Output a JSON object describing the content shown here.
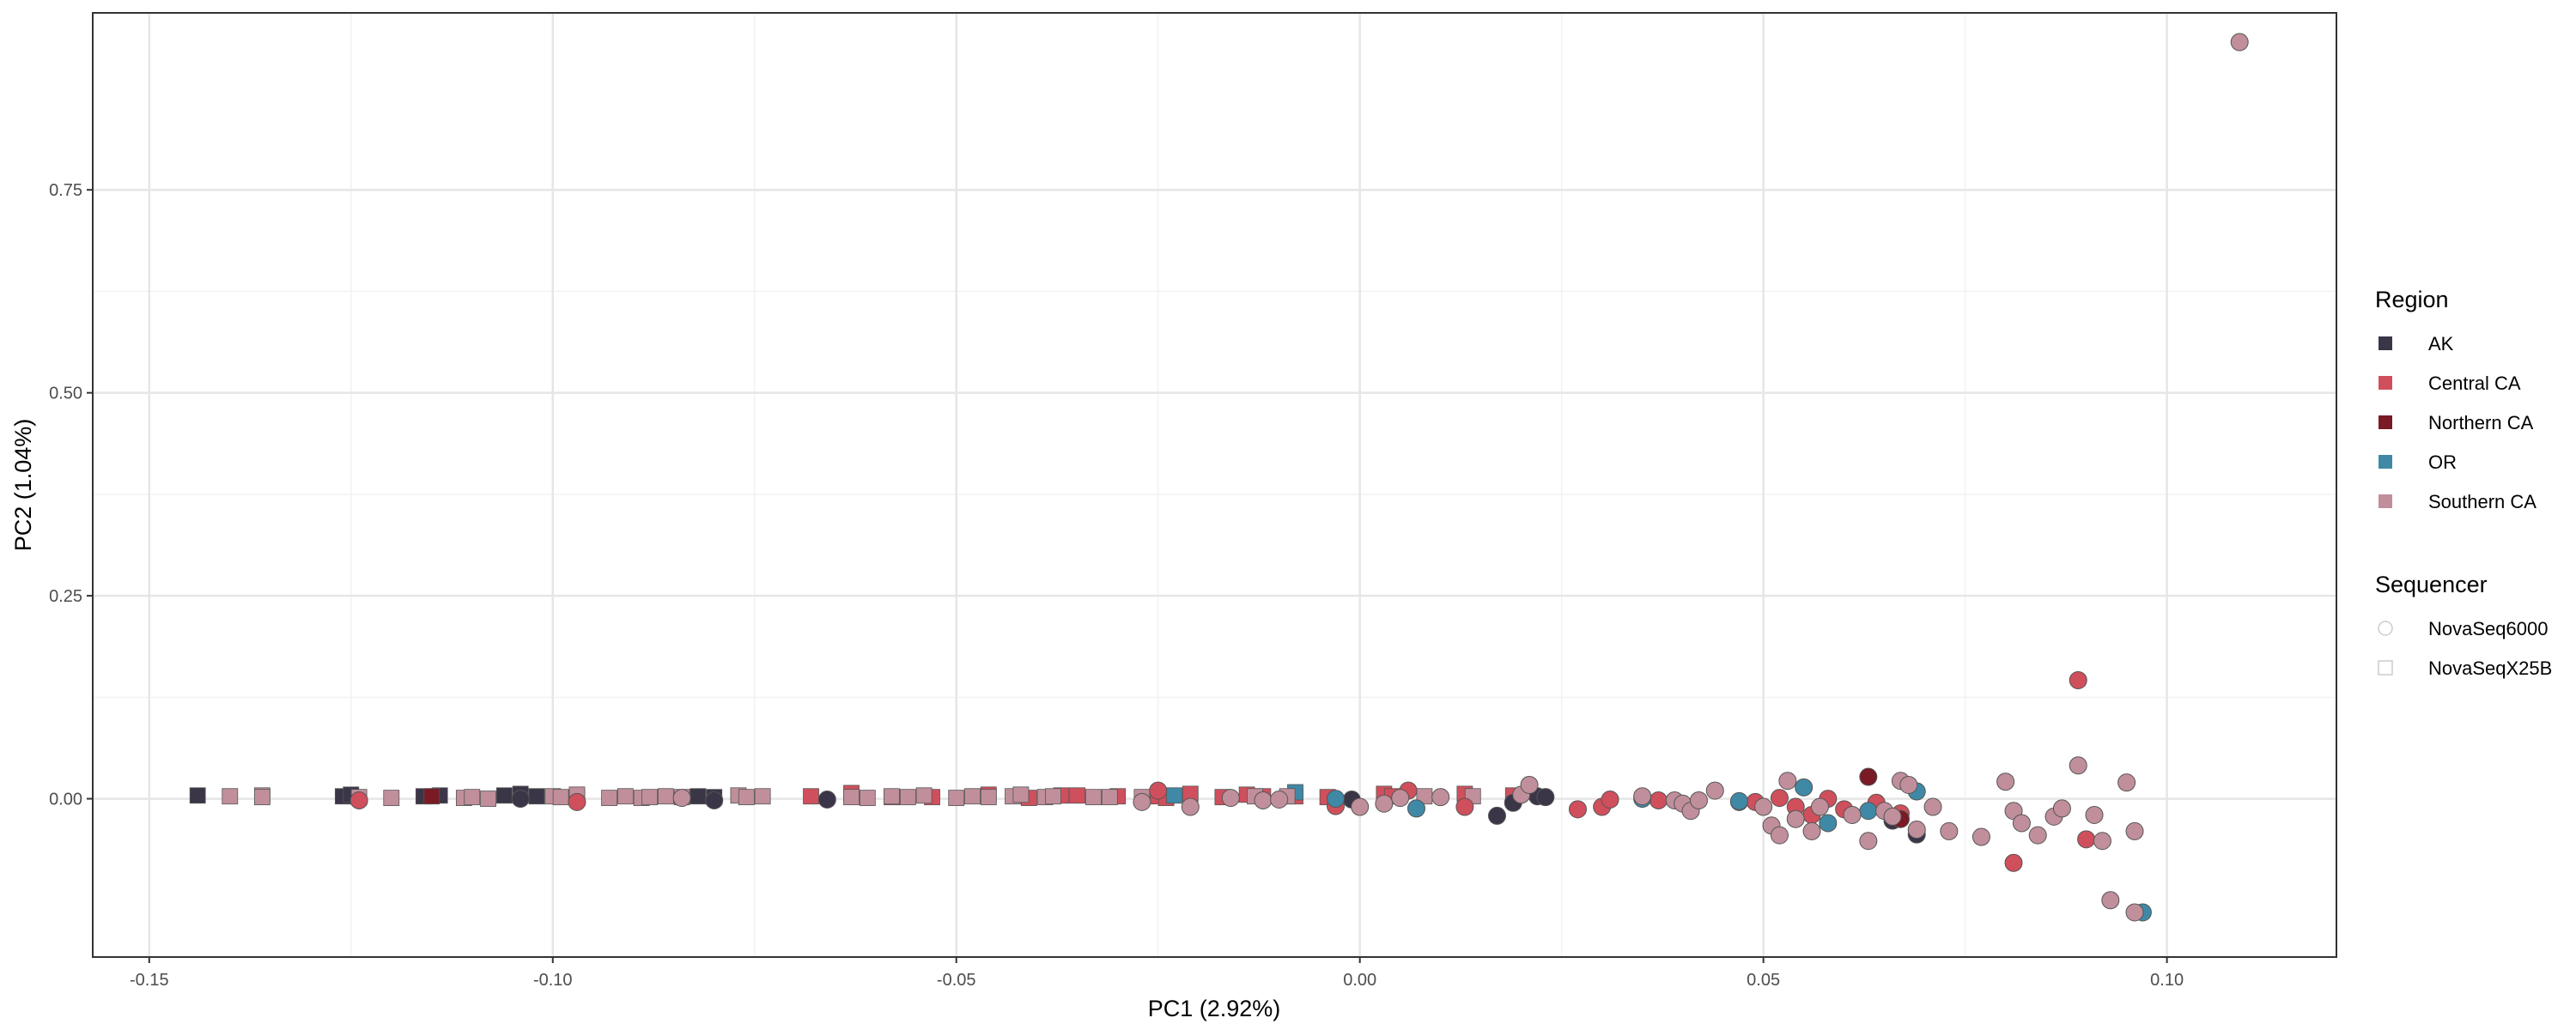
{
  "chart_data": {
    "type": "scatter",
    "title": "",
    "xlabel": "PC1 (2.92%)",
    "ylabel": "PC2 (1.04%)",
    "xlim": [
      -0.157,
      0.121
    ],
    "ylim": [
      -0.195,
      0.968
    ],
    "x_ticks": [
      -0.15,
      -0.1,
      -0.05,
      0.0,
      0.05,
      0.1
    ],
    "x_tick_labels": [
      "-0.15",
      "-0.10",
      "-0.05",
      "0.00",
      "0.05",
      "0.10"
    ],
    "y_ticks": [
      0.0,
      0.25,
      0.5,
      0.75
    ],
    "y_tick_labels": [
      "0.00",
      "0.25",
      "0.50",
      "0.75"
    ],
    "grid": true,
    "legend_position": "right",
    "colors": {
      "AK": "#3b3548",
      "Central CA": "#d04f5c",
      "Northern CA": "#7a1a24",
      "OR": "#3f89a6",
      "Southern CA": "#c08f9b"
    },
    "legends": [
      {
        "title": "Region",
        "key": "region",
        "items": [
          "AK",
          "Central CA",
          "Northern CA",
          "OR",
          "Southern CA"
        ]
      },
      {
        "title": "Sequencer",
        "key": "sequencer",
        "items": [
          "NovaSeq6000",
          "NovaSeqX25B"
        ]
      }
    ],
    "series": [
      {
        "region": "AK",
        "sequencer": "NovaSeqX25B",
        "points": [
          [
            -0.144,
            0.004
          ],
          [
            -0.126,
            0.003
          ],
          [
            -0.125,
            0.005
          ],
          [
            -0.116,
            0.003
          ],
          [
            -0.114,
            0.004
          ],
          [
            -0.106,
            0.004
          ],
          [
            -0.104,
            0.006
          ],
          [
            -0.102,
            0.003
          ],
          [
            -0.082,
            0.003
          ],
          [
            -0.08,
            0.002
          ]
        ]
      },
      {
        "region": "AK",
        "sequencer": "NovaSeq6000",
        "points": [
          [
            -0.104,
            0.0
          ],
          [
            -0.08,
            -0.002
          ],
          [
            -0.066,
            -0.001
          ],
          [
            -0.001,
            -0.001
          ],
          [
            0.017,
            -0.021
          ],
          [
            0.019,
            -0.005
          ],
          [
            0.022,
            0.003
          ],
          [
            0.023,
            0.002
          ],
          [
            0.047,
            -0.004
          ],
          [
            0.066,
            -0.027
          ],
          [
            0.069,
            -0.044
          ]
        ]
      },
      {
        "region": "Central CA",
        "sequencer": "NovaSeqX25B",
        "points": [
          [
            -0.068,
            0.003
          ],
          [
            -0.063,
            0.007
          ],
          [
            -0.058,
            0.002
          ],
          [
            -0.053,
            0.002
          ],
          [
            -0.046,
            0.005
          ],
          [
            -0.041,
            0.001
          ],
          [
            -0.037,
            0.004
          ],
          [
            -0.035,
            0.004
          ],
          [
            -0.03,
            0.003
          ],
          [
            -0.025,
            0.003
          ],
          [
            -0.024,
            0.001
          ],
          [
            -0.021,
            0.006
          ],
          [
            -0.017,
            0.002
          ],
          [
            -0.014,
            0.005
          ],
          [
            -0.012,
            0.003
          ],
          [
            -0.008,
            0.003
          ],
          [
            -0.004,
            0.002
          ],
          [
            0.003,
            0.006
          ],
          [
            0.004,
            0.003
          ],
          [
            0.013,
            0.006
          ],
          [
            0.019,
            0.004
          ]
        ]
      },
      {
        "region": "Central CA",
        "sequencer": "NovaSeq6000",
        "points": [
          [
            -0.124,
            -0.002
          ],
          [
            -0.097,
            -0.004
          ],
          [
            -0.025,
            0.01
          ],
          [
            -0.003,
            -0.009
          ],
          [
            0.006,
            0.01
          ],
          [
            0.013,
            -0.01
          ],
          [
            0.027,
            -0.013
          ],
          [
            0.03,
            -0.01
          ],
          [
            0.031,
            -0.001
          ],
          [
            0.037,
            -0.002
          ],
          [
            0.049,
            -0.004
          ],
          [
            0.052,
            0.001
          ],
          [
            0.054,
            -0.01
          ],
          [
            0.056,
            -0.02
          ],
          [
            0.058,
            0.0
          ],
          [
            0.06,
            -0.013
          ],
          [
            0.064,
            -0.005
          ],
          [
            0.067,
            -0.018
          ],
          [
            0.081,
            -0.079
          ],
          [
            0.089,
            0.146
          ],
          [
            0.09,
            -0.05
          ]
        ]
      },
      {
        "region": "Northern CA",
        "sequencer": "NovaSeqX25B",
        "points": [
          [
            -0.115,
            0.003
          ],
          [
            -0.097,
            0.002
          ]
        ]
      },
      {
        "region": "Northern CA",
        "sequencer": "NovaSeq6000",
        "points": [
          [
            0.063,
            0.027
          ],
          [
            0.067,
            -0.025
          ]
        ]
      },
      {
        "region": "OR",
        "sequencer": "NovaSeqX25B",
        "points": [
          [
            -0.023,
            0.004
          ],
          [
            -0.008,
            0.008
          ]
        ]
      },
      {
        "region": "OR",
        "sequencer": "NovaSeq6000",
        "points": [
          [
            -0.003,
            0.0
          ],
          [
            0.007,
            -0.012
          ],
          [
            0.035,
            0.0
          ],
          [
            0.047,
            -0.003
          ],
          [
            0.055,
            0.014
          ],
          [
            0.058,
            -0.03
          ],
          [
            0.063,
            -0.015
          ],
          [
            0.069,
            0.009
          ],
          [
            0.097,
            -0.14
          ]
        ]
      },
      {
        "region": "Southern CA",
        "sequencer": "NovaSeqX25B",
        "points": [
          [
            -0.14,
            0.003
          ],
          [
            -0.136,
            0.004
          ],
          [
            -0.136,
            0.002
          ],
          [
            -0.124,
            0.002
          ],
          [
            -0.12,
            0.001
          ],
          [
            -0.111,
            0.001
          ],
          [
            -0.11,
            0.002
          ],
          [
            -0.108,
            0.0
          ],
          [
            -0.1,
            0.003
          ],
          [
            -0.099,
            0.002
          ],
          [
            -0.097,
            0.005
          ],
          [
            -0.093,
            0.001
          ],
          [
            -0.091,
            0.003
          ],
          [
            -0.089,
            0.001
          ],
          [
            -0.088,
            0.002
          ],
          [
            -0.086,
            0.003
          ],
          [
            -0.084,
            0.002
          ],
          [
            -0.077,
            0.004
          ],
          [
            -0.076,
            0.002
          ],
          [
            -0.074,
            0.003
          ],
          [
            -0.063,
            0.002
          ],
          [
            -0.061,
            0.001
          ],
          [
            -0.058,
            0.003
          ],
          [
            -0.056,
            0.002
          ],
          [
            -0.054,
            0.004
          ],
          [
            -0.05,
            0.001
          ],
          [
            -0.048,
            0.003
          ],
          [
            -0.046,
            0.002
          ],
          [
            -0.043,
            0.003
          ],
          [
            -0.042,
            0.005
          ],
          [
            -0.039,
            0.002
          ],
          [
            -0.038,
            0.003
          ],
          [
            -0.033,
            0.002
          ],
          [
            -0.031,
            0.002
          ],
          [
            -0.027,
            0.002
          ],
          [
            -0.013,
            0.003
          ],
          [
            -0.009,
            0.003
          ],
          [
            0.008,
            0.003
          ],
          [
            0.014,
            0.003
          ]
        ]
      },
      {
        "region": "Southern CA",
        "sequencer": "NovaSeq6000",
        "points": [
          [
            -0.084,
            0.001
          ],
          [
            -0.027,
            -0.004
          ],
          [
            -0.021,
            -0.01
          ],
          [
            -0.016,
            0.001
          ],
          [
            -0.012,
            -0.002
          ],
          [
            -0.01,
            -0.001
          ],
          [
            0.0,
            -0.01
          ],
          [
            0.003,
            -0.006
          ],
          [
            0.005,
            0.001
          ],
          [
            0.01,
            0.002
          ],
          [
            0.02,
            0.005
          ],
          [
            0.021,
            0.017
          ],
          [
            0.035,
            0.003
          ],
          [
            0.039,
            -0.002
          ],
          [
            0.04,
            -0.006
          ],
          [
            0.041,
            -0.015
          ],
          [
            0.042,
            -0.002
          ],
          [
            0.044,
            0.01
          ],
          [
            0.05,
            -0.01
          ],
          [
            0.051,
            -0.033
          ],
          [
            0.052,
            -0.045
          ],
          [
            0.053,
            0.022
          ],
          [
            0.054,
            -0.025
          ],
          [
            0.056,
            -0.04
          ],
          [
            0.057,
            -0.01
          ],
          [
            0.061,
            -0.02
          ],
          [
            0.063,
            -0.052
          ],
          [
            0.065,
            -0.015
          ],
          [
            0.066,
            -0.022
          ],
          [
            0.067,
            0.022
          ],
          [
            0.068,
            0.017
          ],
          [
            0.069,
            -0.038
          ],
          [
            0.071,
            -0.01
          ],
          [
            0.073,
            -0.04
          ],
          [
            0.077,
            -0.047
          ],
          [
            0.08,
            0.021
          ],
          [
            0.081,
            -0.015
          ],
          [
            0.082,
            -0.03
          ],
          [
            0.084,
            -0.045
          ],
          [
            0.086,
            -0.022
          ],
          [
            0.087,
            -0.012
          ],
          [
            0.089,
            0.041
          ],
          [
            0.091,
            -0.02
          ],
          [
            0.092,
            -0.052
          ],
          [
            0.093,
            -0.125
          ],
          [
            0.095,
            0.02
          ],
          [
            0.096,
            -0.04
          ],
          [
            0.096,
            -0.14
          ],
          [
            0.109,
            0.932
          ]
        ]
      }
    ]
  }
}
